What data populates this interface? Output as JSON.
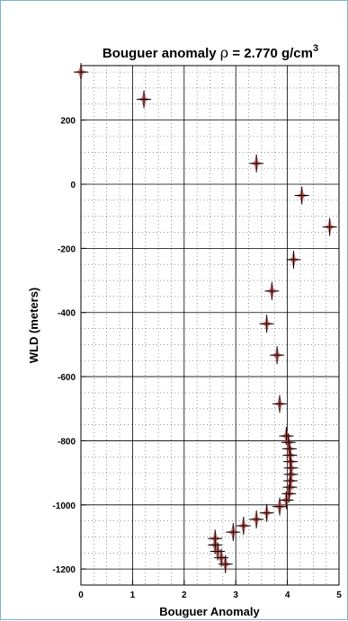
{
  "chart_data": {
    "type": "scatter",
    "title_main": "Bouguer anomaly ",
    "title_rho": "ρ",
    "title_value": " = 2.770 g/cm",
    "title_sup": "3",
    "xlabel": "Bouguer Anomaly",
    "ylabel": "WLD (meters)",
    "xlim": [
      0,
      5
    ],
    "ylim": [
      -1250,
      370
    ],
    "x_ticks": [
      0,
      1,
      2,
      3,
      4,
      5
    ],
    "x_tick_labels": [
      "0",
      "1",
      "2",
      "3",
      "4",
      "5"
    ],
    "y_ticks": [
      200,
      0,
      -200,
      -400,
      -600,
      -800,
      -1000,
      -1200
    ],
    "y_tick_labels": [
      "200",
      "0",
      "-200",
      "-400",
      "-600",
      "-800",
      "-1000",
      "-1200"
    ],
    "grid": true,
    "marker_color": "#c0504d",
    "points": [
      {
        "x": 0.0,
        "y": 350
      },
      {
        "x": 1.22,
        "y": 265
      },
      {
        "x": 3.4,
        "y": 65
      },
      {
        "x": 4.28,
        "y": -35
      },
      {
        "x": 4.82,
        "y": -133
      },
      {
        "x": 4.12,
        "y": -235
      },
      {
        "x": 3.7,
        "y": -333
      },
      {
        "x": 3.6,
        "y": -435
      },
      {
        "x": 3.8,
        "y": -533
      },
      {
        "x": 3.85,
        "y": -685
      },
      {
        "x": 3.98,
        "y": -785
      },
      {
        "x": 4.02,
        "y": -805
      },
      {
        "x": 4.04,
        "y": -825
      },
      {
        "x": 4.05,
        "y": -845
      },
      {
        "x": 4.06,
        "y": -865
      },
      {
        "x": 4.07,
        "y": -885
      },
      {
        "x": 4.07,
        "y": -905
      },
      {
        "x": 4.06,
        "y": -925
      },
      {
        "x": 4.05,
        "y": -945
      },
      {
        "x": 4.03,
        "y": -965
      },
      {
        "x": 3.98,
        "y": -985
      },
      {
        "x": 3.85,
        "y": -1005
      },
      {
        "x": 3.6,
        "y": -1025
      },
      {
        "x": 3.4,
        "y": -1045
      },
      {
        "x": 3.15,
        "y": -1065
      },
      {
        "x": 2.95,
        "y": -1085
      },
      {
        "x": 2.6,
        "y": -1105
      },
      {
        "x": 2.6,
        "y": -1125
      },
      {
        "x": 2.65,
        "y": -1145
      },
      {
        "x": 2.72,
        "y": -1165
      },
      {
        "x": 2.8,
        "y": -1185
      }
    ]
  }
}
